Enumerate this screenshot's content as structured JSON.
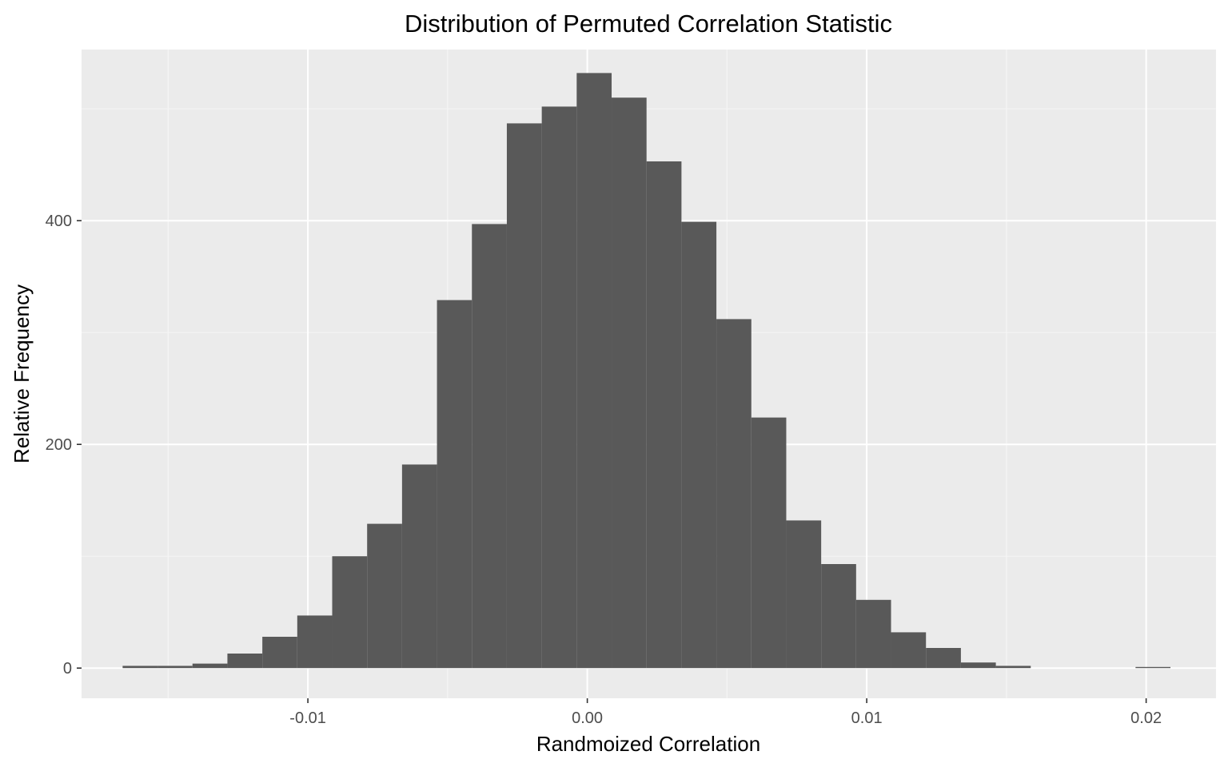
{
  "chart_data": {
    "type": "bar",
    "title": "Distribution of Permuted Correlation Statistic",
    "xlabel": "Randmoized Correlation",
    "ylabel": "Relative Frequency",
    "xlim": [
      -0.0181,
      0.0225
    ],
    "ylim": [
      -27,
      553
    ],
    "x_ticks": [
      -0.01,
      0.0,
      0.01,
      0.02
    ],
    "x_tick_labels": [
      "-0.01",
      "0.00",
      "0.01",
      "0.02"
    ],
    "y_ticks": [
      0,
      200,
      400
    ],
    "y_tick_labels": [
      "0",
      "200",
      "400"
    ],
    "x_minor_gridlines": [
      -0.015,
      -0.005,
      0.005,
      0.015
    ],
    "y_minor_gridlines": [
      100,
      300,
      500
    ],
    "grid": true,
    "bin_width": 0.00125,
    "bins": [
      {
        "x0": -0.01663,
        "x1": -0.01538,
        "value": 2
      },
      {
        "x0": -0.01538,
        "x1": -0.01413,
        "value": 2
      },
      {
        "x0": -0.01413,
        "x1": -0.01288,
        "value": 4
      },
      {
        "x0": -0.01288,
        "x1": -0.01163,
        "value": 13
      },
      {
        "x0": -0.01163,
        "x1": -0.01038,
        "value": 28
      },
      {
        "x0": -0.01038,
        "x1": -0.00913,
        "value": 47
      },
      {
        "x0": -0.00913,
        "x1": -0.00788,
        "value": 100
      },
      {
        "x0": -0.00788,
        "x1": -0.00663,
        "value": 129
      },
      {
        "x0": -0.00663,
        "x1": -0.00538,
        "value": 182
      },
      {
        "x0": -0.00538,
        "x1": -0.00413,
        "value": 329
      },
      {
        "x0": -0.00413,
        "x1": -0.00288,
        "value": 397
      },
      {
        "x0": -0.00288,
        "x1": -0.00163,
        "value": 487
      },
      {
        "x0": -0.00163,
        "x1": -0.00038,
        "value": 502
      },
      {
        "x0": -0.00038,
        "x1": 0.00087,
        "value": 532
      },
      {
        "x0": 0.00087,
        "x1": 0.00212,
        "value": 510
      },
      {
        "x0": 0.00212,
        "x1": 0.00337,
        "value": 453
      },
      {
        "x0": 0.00337,
        "x1": 0.00462,
        "value": 399
      },
      {
        "x0": 0.00462,
        "x1": 0.00587,
        "value": 312
      },
      {
        "x0": 0.00587,
        "x1": 0.00712,
        "value": 224
      },
      {
        "x0": 0.00712,
        "x1": 0.00837,
        "value": 132
      },
      {
        "x0": 0.00837,
        "x1": 0.00962,
        "value": 93
      },
      {
        "x0": 0.00962,
        "x1": 0.01087,
        "value": 61
      },
      {
        "x0": 0.01087,
        "x1": 0.01212,
        "value": 32
      },
      {
        "x0": 0.01212,
        "x1": 0.01337,
        "value": 18
      },
      {
        "x0": 0.01337,
        "x1": 0.01462,
        "value": 5
      },
      {
        "x0": 0.01462,
        "x1": 0.01587,
        "value": 2
      },
      {
        "x0": 0.01587,
        "x1": 0.01712,
        "value": 0
      },
      {
        "x0": 0.01712,
        "x1": 0.01837,
        "value": 0
      },
      {
        "x0": 0.01837,
        "x1": 0.01962,
        "value": 0
      },
      {
        "x0": 0.01962,
        "x1": 0.02087,
        "value": 1
      }
    ],
    "colors": {
      "panel_background": "#ebebeb",
      "grid_major": "#ffffff",
      "grid_minor": "#f5f5f5",
      "bar_fill": "#595959",
      "tick_text": "#4d4d4d",
      "tick_mark": "#333333",
      "text": "#000000"
    }
  }
}
